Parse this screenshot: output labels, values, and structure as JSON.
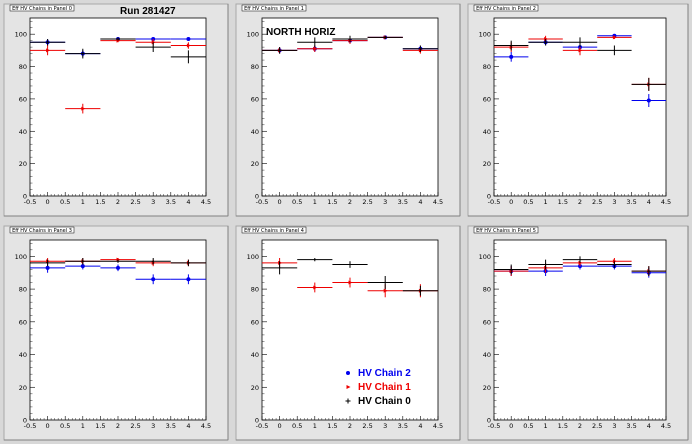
{
  "colors": {
    "HV Chain 2": "#0000ee",
    "HV Chain 1": "#ee0000",
    "HV Chain 0": "#000000"
  },
  "legend": [
    {
      "name": "HV Chain 2",
      "marker": "circle"
    },
    {
      "name": "HV Chain 1",
      "marker": "triangle"
    },
    {
      "name": "HV Chain 0",
      "marker": "cross"
    }
  ],
  "chart_data": [
    {
      "type": "scatter",
      "panel_title": "Eff HV Chains in Panel 0",
      "annotation": "Run 281427",
      "xlim": [
        -0.5,
        4.5
      ],
      "ylim": [
        0,
        110
      ],
      "xticks": [
        "-0.5",
        "0",
        "0.5",
        "1",
        "1.5",
        "2",
        "2.5",
        "3",
        "3.5",
        "4",
        "4.5"
      ],
      "yticks": [
        "0",
        "20",
        "40",
        "60",
        "80",
        "100"
      ],
      "x": [
        0,
        1,
        2,
        3,
        4
      ],
      "series": [
        {
          "name": "HV Chain 2",
          "values": [
            95,
            88,
            97,
            97,
            97
          ],
          "errors": [
            2,
            2,
            1,
            1,
            1
          ]
        },
        {
          "name": "HV Chain 1",
          "values": [
            90,
            54,
            96,
            95,
            93
          ],
          "errors": [
            3,
            3,
            1,
            2,
            2
          ]
        },
        {
          "name": "HV Chain 0",
          "values": [
            95,
            88,
            97,
            92,
            86
          ],
          "errors": [
            2,
            3,
            1,
            3,
            4
          ]
        }
      ]
    },
    {
      "type": "scatter",
      "panel_title": "Eff HV Chains in Panel 1",
      "annotation": "NORTH HORIZ",
      "xlim": [
        -0.5,
        4.5
      ],
      "ylim": [
        0,
        110
      ],
      "xticks": [
        "-0.5",
        "0",
        "0.5",
        "1",
        "1.5",
        "2",
        "2.5",
        "3",
        "3.5",
        "4",
        "4.5"
      ],
      "yticks": [
        "0",
        "20",
        "40",
        "60",
        "80",
        "100"
      ],
      "x": [
        0,
        1,
        2,
        3,
        4
      ],
      "series": [
        {
          "name": "HV Chain 2",
          "values": [
            90,
            91,
            96,
            98,
            91
          ],
          "errors": [
            2,
            2,
            2,
            1,
            2
          ]
        },
        {
          "name": "HV Chain 1",
          "values": [
            90,
            91,
            96,
            98,
            90
          ],
          "errors": [
            2,
            2,
            2,
            1,
            2
          ]
        },
        {
          "name": "HV Chain 0",
          "values": [
            90,
            95,
            97,
            98,
            91
          ],
          "errors": [
            2,
            3,
            2,
            1,
            2
          ]
        }
      ]
    },
    {
      "type": "scatter",
      "panel_title": "Eff HV Chains in Panel 2",
      "annotation": "",
      "xlim": [
        -0.5,
        4.5
      ],
      "ylim": [
        0,
        110
      ],
      "xticks": [
        "-0.5",
        "0",
        "0.5",
        "1",
        "1.5",
        "2",
        "2.5",
        "3",
        "3.5",
        "4",
        "4.5"
      ],
      "yticks": [
        "0",
        "20",
        "40",
        "60",
        "80",
        "100"
      ],
      "x": [
        0,
        1,
        2,
        3,
        4
      ],
      "series": [
        {
          "name": "HV Chain 2",
          "values": [
            86,
            95,
            92,
            99,
            59
          ],
          "errors": [
            3,
            2,
            3,
            1,
            4
          ]
        },
        {
          "name": "HV Chain 1",
          "values": [
            92,
            97,
            90,
            98,
            69
          ],
          "errors": [
            3,
            2,
            3,
            1,
            4
          ]
        },
        {
          "name": "HV Chain 0",
          "values": [
            93,
            95,
            95,
            90,
            69
          ],
          "errors": [
            3,
            2,
            3,
            3,
            4
          ]
        }
      ]
    },
    {
      "type": "scatter",
      "panel_title": "Eff HV Chains in Panel 3",
      "annotation": "",
      "xlim": [
        -0.5,
        4.5
      ],
      "ylim": [
        0,
        110
      ],
      "xticks": [
        "-0.5",
        "0",
        "0.5",
        "1",
        "1.5",
        "2",
        "2.5",
        "3",
        "3.5",
        "4",
        "4.5"
      ],
      "yticks": [
        "0",
        "20",
        "40",
        "60",
        "80",
        "100"
      ],
      "x": [
        0,
        1,
        2,
        3,
        4
      ],
      "series": [
        {
          "name": "HV Chain 2",
          "values": [
            93,
            94,
            93,
            86,
            86
          ],
          "errors": [
            3,
            2,
            2,
            3,
            3
          ]
        },
        {
          "name": "HV Chain 1",
          "values": [
            97,
            97,
            98,
            96,
            96
          ],
          "errors": [
            2,
            2,
            1,
            2,
            2
          ]
        },
        {
          "name": "HV Chain 0",
          "values": [
            96,
            97,
            97,
            97,
            96
          ],
          "errors": [
            2,
            2,
            1,
            2,
            2
          ]
        }
      ]
    },
    {
      "type": "scatter",
      "panel_title": "Eff HV Chains in Panel 4",
      "annotation": "",
      "xlim": [
        -0.5,
        4.5
      ],
      "ylim": [
        0,
        110
      ],
      "xticks": [
        "-0.5",
        "0",
        "0.5",
        "1",
        "1.5",
        "2",
        "2.5",
        "3",
        "3.5",
        "4",
        "4.5"
      ],
      "yticks": [
        "0",
        "20",
        "40",
        "60",
        "80",
        "100"
      ],
      "x": [
        0,
        1,
        2,
        3,
        4
      ],
      "series": [
        {
          "name": "HV Chain 2",
          "values": [],
          "errors": []
        },
        {
          "name": "HV Chain 1",
          "values": [
            96,
            81,
            84,
            79,
            79
          ],
          "errors": [
            3,
            3,
            3,
            4,
            4
          ]
        },
        {
          "name": "HV Chain 0",
          "values": [
            93,
            98,
            95,
            84,
            79
          ],
          "errors": [
            4,
            1,
            2,
            4,
            3
          ]
        }
      ]
    },
    {
      "type": "scatter",
      "panel_title": "Eff HV Chains in Panel 5",
      "annotation": "",
      "xlim": [
        -0.5,
        4.5
      ],
      "ylim": [
        0,
        110
      ],
      "xticks": [
        "-0.5",
        "0",
        "0.5",
        "1",
        "1.5",
        "2",
        "2.5",
        "3",
        "3.5",
        "4",
        "4.5"
      ],
      "yticks": [
        "0",
        "20",
        "40",
        "60",
        "80",
        "100"
      ],
      "x": [
        0,
        1,
        2,
        3,
        4
      ],
      "series": [
        {
          "name": "HV Chain 2",
          "values": [
            91,
            91,
            94,
            94,
            90
          ],
          "errors": [
            3,
            3,
            2,
            2,
            3
          ]
        },
        {
          "name": "HV Chain 1",
          "values": [
            91,
            93,
            96,
            97,
            91
          ],
          "errors": [
            3,
            3,
            2,
            2,
            3
          ]
        },
        {
          "name": "HV Chain 0",
          "values": [
            92,
            95,
            98,
            95,
            91
          ],
          "errors": [
            3,
            3,
            2,
            2,
            3
          ]
        }
      ]
    }
  ]
}
